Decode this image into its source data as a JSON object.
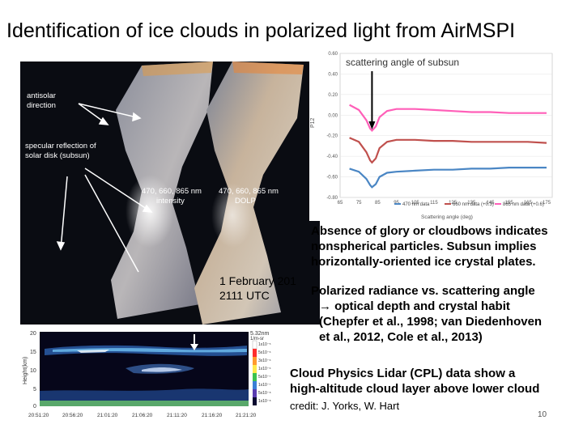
{
  "title": "Identification of ice clouds in polarized light from AirMSPI",
  "image": {
    "annotation_antisolar": [
      "antisolar",
      "direction"
    ],
    "annotation_subsun": [
      "specular reflection of",
      "solar disk (subsun)"
    ],
    "panel_left_label": [
      "470, 660, 865 nm",
      "intensity"
    ],
    "panel_right_label": [
      "470, 660, 865 nm",
      "DOLP"
    ],
    "date_lines": [
      "1 February 201",
      "2111 UTC"
    ]
  },
  "polarization_chart": {
    "annotation": "scattering angle of subsun",
    "chart_data": {
      "type": "line",
      "xlabel": "Scattering angle (deg)",
      "ylabel": "P12",
      "x_ticks": [
        "65",
        "75",
        "85",
        "95",
        "105",
        "115",
        "125",
        "135",
        "145",
        "155",
        "165",
        "175"
      ],
      "y_ticks": [
        "0.60",
        "0.40",
        "0.20",
        "0.00",
        "-0.20",
        "-0.40",
        "-0.60",
        "-0.80"
      ],
      "xlim": [
        65,
        178
      ],
      "ylim": [
        -0.8,
        0.6
      ],
      "subsun_angle": 82,
      "series": [
        {
          "name": "470 nm data",
          "color": "#4a86c4",
          "x": [
            70,
            75,
            79,
            81,
            82,
            84,
            86,
            90,
            95,
            105,
            115,
            125,
            135,
            145,
            155,
            165,
            175
          ],
          "y": [
            -0.52,
            -0.55,
            -0.62,
            -0.68,
            -0.7,
            -0.67,
            -0.6,
            -0.56,
            -0.55,
            -0.54,
            -0.53,
            -0.53,
            -0.52,
            -0.52,
            -0.51,
            -0.51,
            -0.51
          ]
        },
        {
          "name": "660 nm data (+0.3)",
          "color": "#c0504d",
          "x": [
            70,
            75,
            79,
            81,
            82,
            84,
            86,
            90,
            95,
            105,
            115,
            125,
            135,
            145,
            155,
            165,
            175
          ],
          "y": [
            -0.22,
            -0.26,
            -0.36,
            -0.44,
            -0.46,
            -0.42,
            -0.32,
            -0.26,
            -0.24,
            -0.24,
            -0.25,
            -0.25,
            -0.26,
            -0.26,
            -0.26,
            -0.26,
            -0.27
          ]
        },
        {
          "name": "865 nm data (+0.6)",
          "color": "#ff5fb8",
          "x": [
            70,
            75,
            79,
            81,
            82,
            84,
            86,
            90,
            95,
            105,
            115,
            125,
            135,
            145,
            155,
            165,
            175
          ],
          "y": [
            0.1,
            0.05,
            -0.05,
            -0.13,
            -0.15,
            -0.11,
            -0.02,
            0.04,
            0.06,
            0.06,
            0.05,
            0.04,
            0.03,
            0.03,
            0.02,
            0.02,
            0.02
          ]
        }
      ]
    }
  },
  "text_block_1": "Absence of glory or cloudbows indicates nonspherical particles. Subsun implies horizontally-oriented ice crystal plates.",
  "text_block_2_lines": [
    "Polarized radiance vs. scattering angle",
    "→ optical depth and crystal habit",
    "(Chepfer et al., 1998; van Diedenhoven",
    "et al., 2012, Cole et al., 2013)"
  ],
  "lidar": {
    "ylabel": "Height(km)",
    "y_ticks": [
      "20",
      "15",
      "10",
      "5",
      "0"
    ],
    "x_ticks": [
      "20:51:20",
      "20:56:20",
      "21:01:20",
      "21:06:20",
      "21:11:20",
      "21:16:20",
      "21:21:20"
    ],
    "colorbar_title": [
      "5.32nm",
      "1/m-sr"
    ],
    "colorbar_ticks": [
      "1x10⁻⁵",
      "5x10⁻⁶",
      "3x10⁻⁶",
      "1x10⁻⁶",
      "5x10⁻⁷",
      "1x10⁻⁷",
      "5x10⁻⁸",
      "1x10⁻⁸"
    ]
  },
  "text_block_3_lines": [
    "Cloud Physics Lidar (CPL) data show a",
    "high-altitude cloud layer above lower cloud"
  ],
  "credit": "credit: J. Yorks, W. Hart",
  "page_number": "10"
}
